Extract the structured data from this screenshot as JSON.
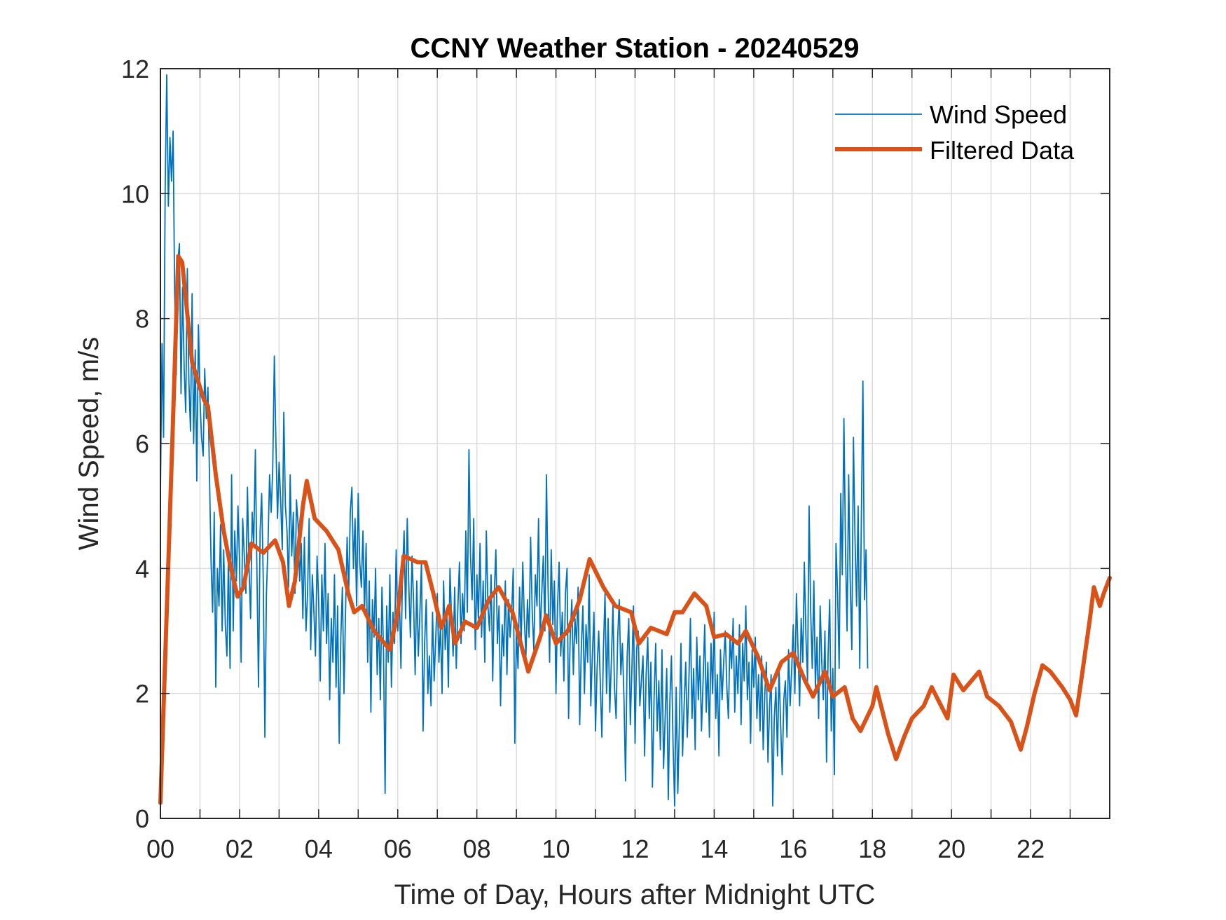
{
  "chart_data": {
    "type": "line",
    "title": "CCNY Weather Station - 20240529",
    "xlabel": "Time of Day, Hours after Midnight UTC",
    "ylabel": "Wind Speed, m/s",
    "xlim": [
      0,
      24
    ],
    "ylim": [
      0,
      12
    ],
    "x_ticks": [
      0,
      2,
      4,
      6,
      8,
      10,
      12,
      14,
      16,
      18,
      20,
      22
    ],
    "x_tick_labels": [
      "00",
      "02",
      "04",
      "06",
      "08",
      "10",
      "12",
      "14",
      "16",
      "18",
      "20",
      "22"
    ],
    "x_minor_grid_step": 1,
    "y_ticks": [
      0,
      2,
      4,
      6,
      8,
      10,
      12
    ],
    "y_tick_labels": [
      "0",
      "2",
      "4",
      "6",
      "8",
      "10",
      "12"
    ],
    "grid": true,
    "legend": {
      "placement": "top-right",
      "entries": [
        "Wind Speed",
        "Filtered Data"
      ]
    },
    "colors": {
      "raw": "#0072BD",
      "filtered": "#D95319",
      "axis": "#262626",
      "grid": "#dcdcdc"
    },
    "series": [
      {
        "name": "Wind Speed",
        "x_start": 0,
        "x_step": 0.04,
        "note": "raw samples, one every 0.04 h",
        "values": [
          5.2,
          7.6,
          6.1,
          10.1,
          11.9,
          9.8,
          10.9,
          10.2,
          11.0,
          8.4,
          7.1,
          8.9,
          9.2,
          6.8,
          8.5,
          7.2,
          6.5,
          8.8,
          7.0,
          6.2,
          8.4,
          6.0,
          7.5,
          5.4,
          7.9,
          6.7,
          6.1,
          5.8,
          7.2,
          6.4,
          6.9,
          5.5,
          4.1,
          3.3,
          4.9,
          2.1,
          4.0,
          3.4,
          4.7,
          3.0,
          4.3,
          3.1,
          2.6,
          4.2,
          2.4,
          5.5,
          3.0,
          4.6,
          3.8,
          5.0,
          4.1,
          2.5,
          4.8,
          4.2,
          3.6,
          5.3,
          4.0,
          3.2,
          4.9,
          4.4,
          5.9,
          3.9,
          2.1,
          4.6,
          5.2,
          3.8,
          1.3,
          3.6,
          4.4,
          5.5,
          4.9,
          5.6,
          7.4,
          6.0,
          4.8,
          5.7,
          5.1,
          4.3,
          6.5,
          5.0,
          4.6,
          3.7,
          5.5,
          4.2,
          4.9,
          3.6,
          5.1,
          4.7,
          3.8,
          4.4,
          3.2,
          4.5,
          3.0,
          3.6,
          4.8,
          2.7,
          3.9,
          3.3,
          2.6,
          4.2,
          3.5,
          2.2,
          3.9,
          3.0,
          4.4,
          2.8,
          3.6,
          1.9,
          3.2,
          2.5,
          3.9,
          2.1,
          3.4,
          1.2,
          2.9,
          3.7,
          2.0,
          3.3,
          4.5,
          3.6,
          4.9,
          5.3,
          4.0,
          4.8,
          3.4,
          5.2,
          4.1,
          3.7,
          4.6,
          3.3,
          4.4,
          2.5,
          3.8,
          1.7,
          3.5,
          2.9,
          4.0,
          2.3,
          3.2,
          1.9,
          3.7,
          2.7,
          0.4,
          3.4,
          2.5,
          3.9,
          2.1,
          3.3,
          2.8,
          4.3,
          3.0,
          3.6,
          2.4,
          3.9,
          4.6,
          3.2,
          4.8,
          3.7,
          2.9,
          4.2,
          3.5,
          2.3,
          3.8,
          2.6,
          3.3,
          4.1,
          1.4,
          2.8,
          3.5,
          2.0,
          2.6,
          1.8,
          3.3,
          2.2,
          2.9,
          3.6,
          2.5,
          3.1,
          2.0,
          3.8,
          2.7,
          3.3,
          2.1,
          4.0,
          3.2,
          2.6,
          3.7,
          2.4,
          3.4,
          4.1,
          2.8,
          3.6,
          3.0,
          4.6,
          3.3,
          5.9,
          4.2,
          3.5,
          4.8,
          2.7,
          3.9,
          3.2,
          4.4,
          2.9,
          3.8,
          2.5,
          4.6,
          3.4,
          3.0,
          3.9,
          2.2,
          3.6,
          4.3,
          2.8,
          3.4,
          1.8,
          3.1,
          2.6,
          3.8,
          2.3,
          3.5,
          2.9,
          3.3,
          4.0,
          1.2,
          3.0,
          2.4,
          3.7,
          2.8,
          4.1,
          3.2,
          2.6,
          3.5,
          2.9,
          4.5,
          3.3,
          2.7,
          3.9,
          3.4,
          4.8,
          2.9,
          3.6,
          4.2,
          3.0,
          5.5,
          3.7,
          2.5,
          4.3,
          3.1,
          3.8,
          2.0,
          3.4,
          4.1,
          2.6,
          3.3,
          2.2,
          3.6,
          4.0,
          1.6,
          2.9,
          3.5,
          2.3,
          3.2,
          2.8,
          3.7,
          1.5,
          2.7,
          3.4,
          2.0,
          3.1,
          2.5,
          3.9,
          1.8,
          2.6,
          3.3,
          1.4,
          2.4,
          3.0,
          2.2,
          1.3,
          2.7,
          3.6,
          2.0,
          3.2,
          1.7,
          2.5,
          3.4,
          2.1,
          1.6,
          2.9,
          3.5,
          2.3,
          2.8,
          1.9,
          0.6,
          2.6,
          3.2,
          1.5,
          2.4,
          3.4,
          1.2,
          2.7,
          3.0,
          1.8,
          2.2,
          2.6,
          1.0,
          2.3,
          2.9,
          1.6,
          2.5,
          0.5,
          1.9,
          2.8,
          1.4,
          2.2,
          1.1,
          2.7,
          0.8,
          1.6,
          2.4,
          0.3,
          1.9,
          2.6,
          1.2,
          0.2,
          2.1,
          0.4,
          1.5,
          2.8,
          1.0,
          1.8,
          2.5,
          1.3,
          2.2,
          3.2,
          1.6,
          2.4,
          1.1,
          2.9,
          1.9,
          2.6,
          1.4,
          2.2,
          3.1,
          1.7,
          2.5,
          1.3,
          2.8,
          2.0,
          3.3,
          1.6,
          2.3,
          1.0,
          2.7,
          1.9,
          2.5,
          3.0,
          2.1,
          1.6,
          2.9,
          2.4,
          3.2,
          1.7,
          2.6,
          2.0,
          3.1,
          1.5,
          2.8,
          2.2,
          3.4,
          1.9,
          2.5,
          1.2,
          2.7,
          2.1,
          2.9,
          1.6,
          2.3,
          1.4,
          2.6,
          1.1,
          2.0,
          2.5,
          0.9,
          1.8,
          2.3,
          0.2,
          1.6,
          2.1,
          1.0,
          2.4,
          1.5,
          0.7,
          1.9,
          2.2,
          1.3,
          2.7,
          1.8,
          2.4,
          3.1,
          2.0,
          3.6,
          2.7,
          1.8,
          3.2,
          2.5,
          4.1,
          2.9,
          2.2,
          5.0,
          3.3,
          2.4,
          3.8,
          2.1,
          2.9,
          1.6,
          3.4,
          2.5,
          1.9,
          3.0,
          0.9,
          2.6,
          3.5,
          1.4,
          2.4,
          0.7,
          4.4,
          3.6,
          2.4,
          5.2,
          3.9,
          6.4,
          4.3,
          3.0,
          5.5,
          3.8,
          2.7,
          6.1,
          4.5,
          3.4,
          5.0,
          2.4,
          4.7,
          7.0,
          3.5,
          4.3,
          2.4
        ]
      },
      {
        "name": "Filtered Data",
        "points": [
          [
            0.0,
            0.25
          ],
          [
            0.3,
            6.0
          ],
          [
            0.45,
            9.0
          ],
          [
            0.55,
            8.9
          ],
          [
            0.8,
            7.3
          ],
          [
            1.1,
            6.7
          ],
          [
            1.2,
            6.6
          ],
          [
            1.4,
            5.5
          ],
          [
            1.6,
            4.6
          ],
          [
            1.75,
            4.1
          ],
          [
            1.95,
            3.55
          ],
          [
            2.1,
            3.7
          ],
          [
            2.3,
            4.4
          ],
          [
            2.6,
            4.25
          ],
          [
            2.9,
            4.45
          ],
          [
            3.1,
            4.1
          ],
          [
            3.25,
            3.4
          ],
          [
            3.4,
            3.8
          ],
          [
            3.6,
            5.0
          ],
          [
            3.7,
            5.4
          ],
          [
            3.9,
            4.8
          ],
          [
            4.2,
            4.6
          ],
          [
            4.5,
            4.3
          ],
          [
            4.75,
            3.6
          ],
          [
            4.9,
            3.3
          ],
          [
            5.1,
            3.4
          ],
          [
            5.4,
            3.0
          ],
          [
            5.8,
            2.7
          ],
          [
            6.0,
            3.3
          ],
          [
            6.15,
            4.2
          ],
          [
            6.5,
            4.1
          ],
          [
            6.7,
            4.1
          ],
          [
            6.9,
            3.6
          ],
          [
            7.1,
            3.05
          ],
          [
            7.3,
            3.4
          ],
          [
            7.45,
            2.8
          ],
          [
            7.7,
            3.15
          ],
          [
            8.0,
            3.05
          ],
          [
            8.3,
            3.5
          ],
          [
            8.55,
            3.7
          ],
          [
            8.9,
            3.3
          ],
          [
            9.3,
            2.35
          ],
          [
            9.6,
            2.9
          ],
          [
            9.75,
            3.25
          ],
          [
            10.0,
            2.8
          ],
          [
            10.3,
            3.0
          ],
          [
            10.6,
            3.5
          ],
          [
            10.85,
            4.15
          ],
          [
            11.2,
            3.7
          ],
          [
            11.5,
            3.4
          ],
          [
            11.9,
            3.3
          ],
          [
            12.1,
            2.8
          ],
          [
            12.4,
            3.05
          ],
          [
            12.8,
            2.95
          ],
          [
            13.0,
            3.3
          ],
          [
            13.2,
            3.3
          ],
          [
            13.5,
            3.6
          ],
          [
            13.8,
            3.4
          ],
          [
            14.0,
            2.9
          ],
          [
            14.3,
            2.95
          ],
          [
            14.6,
            2.8
          ],
          [
            14.8,
            3.0
          ],
          [
            15.1,
            2.6
          ],
          [
            15.4,
            2.05
          ],
          [
            15.7,
            2.5
          ],
          [
            16.0,
            2.65
          ],
          [
            16.3,
            2.2
          ],
          [
            16.5,
            1.95
          ],
          [
            16.8,
            2.35
          ],
          [
            17.0,
            1.95
          ],
          [
            17.3,
            2.1
          ],
          [
            17.5,
            1.6
          ],
          [
            17.7,
            1.4
          ],
          [
            18.0,
            1.8
          ],
          [
            18.1,
            2.1
          ],
          [
            18.4,
            1.35
          ],
          [
            18.6,
            0.95
          ],
          [
            18.8,
            1.3
          ],
          [
            19.0,
            1.6
          ],
          [
            19.3,
            1.8
          ],
          [
            19.5,
            2.1
          ],
          [
            19.7,
            1.85
          ],
          [
            19.9,
            1.6
          ],
          [
            20.05,
            2.3
          ],
          [
            20.3,
            2.05
          ],
          [
            20.7,
            2.35
          ],
          [
            20.9,
            1.95
          ],
          [
            21.2,
            1.8
          ],
          [
            21.5,
            1.55
          ],
          [
            21.75,
            1.1
          ],
          [
            21.9,
            1.45
          ],
          [
            22.1,
            2.0
          ],
          [
            22.3,
            2.45
          ],
          [
            22.5,
            2.35
          ],
          [
            22.8,
            2.1
          ],
          [
            23.0,
            1.9
          ],
          [
            23.15,
            1.65
          ],
          [
            23.3,
            2.3
          ],
          [
            23.5,
            3.2
          ],
          [
            23.6,
            3.7
          ],
          [
            23.75,
            3.4
          ],
          [
            23.85,
            3.6
          ],
          [
            24.0,
            3.85
          ]
        ]
      }
    ]
  }
}
